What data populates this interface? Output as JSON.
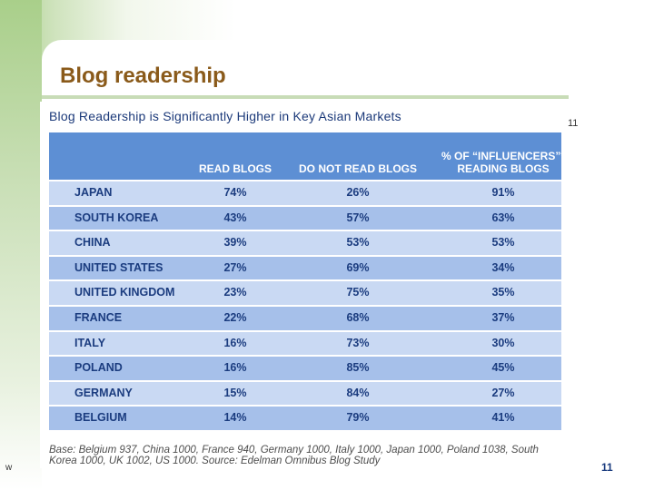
{
  "slide": {
    "title": "Blog readership",
    "side_number": "11",
    "left_mark": "w",
    "page_number": "11"
  },
  "figure": {
    "heading": "Blog Readership is Significantly Higher in Key Asian Markets",
    "columns": [
      "READ BLOGS",
      "DO NOT READ BLOGS",
      "% OF “INFLUENCERS”* READING BLOGS"
    ],
    "rows": [
      {
        "country": "JAPAN",
        "read": "74%",
        "not_read": "26%",
        "influencers": "91%"
      },
      {
        "country": "SOUTH KOREA",
        "read": "43%",
        "not_read": "57%",
        "influencers": "63%"
      },
      {
        "country": "CHINA",
        "read": "39%",
        "not_read": "53%",
        "influencers": "53%"
      },
      {
        "country": "UNITED STATES",
        "read": "27%",
        "not_read": "69%",
        "influencers": "34%"
      },
      {
        "country": "UNITED KINGDOM",
        "read": "23%",
        "not_read": "75%",
        "influencers": "35%"
      },
      {
        "country": "FRANCE",
        "read": "22%",
        "not_read": "68%",
        "influencers": "37%"
      },
      {
        "country": "ITALY",
        "read": "16%",
        "not_read": "73%",
        "influencers": "30%"
      },
      {
        "country": "POLAND",
        "read": "16%",
        "not_read": "85%",
        "influencers": "45%"
      },
      {
        "country": "GERMANY",
        "read": "15%",
        "not_read": "84%",
        "influencers": "27%"
      },
      {
        "country": "BELGIUM",
        "read": "14%",
        "not_read": "79%",
        "influencers": "41%"
      }
    ],
    "footnote": "Base: Belgium 937, China 1000, France 940, Germany 1000, Italy 1000, Japan 1000, Poland 1038, South Korea 1000, UK 1002, US 1000. Source: Edelman Omnibus Blog Study"
  },
  "colors": {
    "title": "#8a5a1a",
    "header_blue": "#5d8fd4",
    "row_light": "#c9d9f3",
    "row_dark": "#a6c0ea",
    "text_navy": "#1b3c7f",
    "accent_green": "#a9cf8a"
  }
}
